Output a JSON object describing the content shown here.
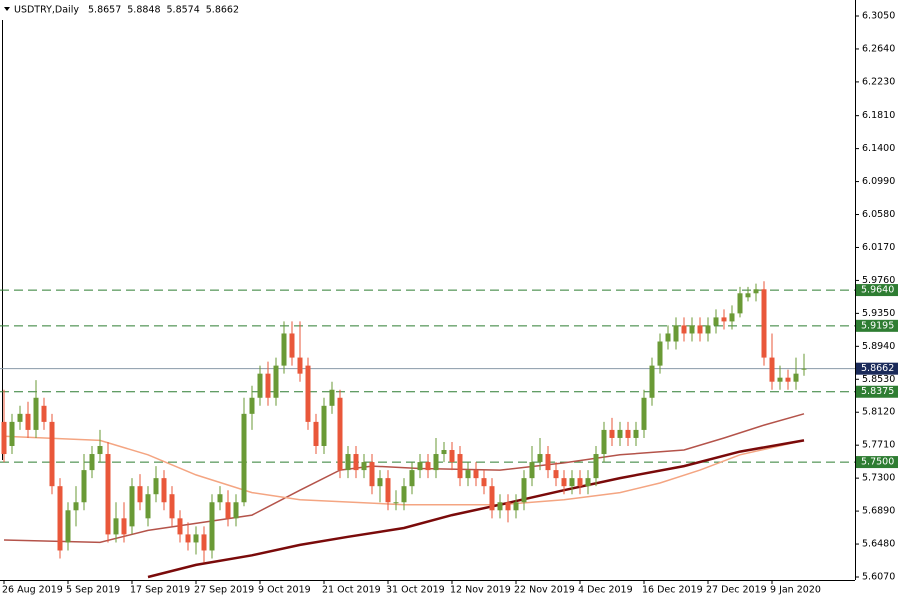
{
  "chart_data": {
    "type": "candlestick",
    "symbol": "USDTRY,Daily",
    "header_values": [
      "5.8657",
      "5.8848",
      "5.8574",
      "5.8662"
    ],
    "ylim": [
      5.607,
      6.305
    ],
    "yticks": [
      {
        "value": 6.305,
        "label": "6.3050"
      },
      {
        "value": 6.264,
        "label": "6.2640"
      },
      {
        "value": 6.223,
        "label": "6.2230"
      },
      {
        "value": 6.181,
        "label": "6.1810"
      },
      {
        "value": 6.14,
        "label": "6.1400"
      },
      {
        "value": 6.099,
        "label": "6.0990"
      },
      {
        "value": 6.058,
        "label": "6.0580"
      },
      {
        "value": 6.017,
        "label": "6.0170"
      },
      {
        "value": 5.976,
        "label": "5.9760"
      },
      {
        "value": 5.935,
        "label": "5.9350"
      },
      {
        "value": 5.894,
        "label": "5.8940"
      },
      {
        "value": 5.853,
        "label": "5.8530"
      },
      {
        "value": 5.812,
        "label": "5.8120"
      },
      {
        "value": 5.771,
        "label": "5.7710"
      },
      {
        "value": 5.73,
        "label": "5.7300"
      },
      {
        "value": 5.689,
        "label": "5.6890"
      },
      {
        "value": 5.648,
        "label": "5.6480"
      },
      {
        "value": 5.607,
        "label": "5.6070"
      }
    ],
    "xlim": [
      0,
      100
    ],
    "xticks": [
      {
        "value": 0,
        "label": "26 Aug 2019"
      },
      {
        "value": 8,
        "label": "5 Sep 2019"
      },
      {
        "value": 16,
        "label": "17 Sep 2019"
      },
      {
        "value": 24,
        "label": "27 Sep 2019"
      },
      {
        "value": 32,
        "label": "9 Oct 2019"
      },
      {
        "value": 40,
        "label": "21 Oct 2019"
      },
      {
        "value": 48,
        "label": "31 Oct 2019"
      },
      {
        "value": 56,
        "label": "12 Nov 2019"
      },
      {
        "value": 64,
        "label": "22 Nov 2019"
      },
      {
        "value": 72,
        "label": "4 Dec 2019"
      },
      {
        "value": 80,
        "label": "16 Dec 2019"
      },
      {
        "value": 88,
        "label": "27 Dec 2019"
      },
      {
        "value": 96,
        "label": "9 Jan 2020"
      }
    ],
    "up_color": "#6a9a36",
    "down_color": "#e9573a",
    "candles": [
      [
        5.8,
        5.84,
        5.75,
        5.76
      ],
      [
        5.77,
        5.81,
        5.76,
        5.8
      ],
      [
        5.8,
        5.82,
        5.79,
        5.81
      ],
      [
        5.81,
        5.825,
        5.78,
        5.79
      ],
      [
        5.79,
        5.852,
        5.78,
        5.83
      ],
      [
        5.82,
        5.83,
        5.79,
        5.8
      ],
      [
        5.8,
        5.81,
        5.71,
        5.72
      ],
      [
        5.72,
        5.73,
        5.63,
        5.64
      ],
      [
        5.65,
        5.7,
        5.64,
        5.69
      ],
      [
        5.69,
        5.72,
        5.67,
        5.7
      ],
      [
        5.7,
        5.76,
        5.69,
        5.74
      ],
      [
        5.74,
        5.77,
        5.73,
        5.76
      ],
      [
        5.76,
        5.79,
        5.75,
        5.77
      ],
      [
        5.76,
        5.775,
        5.65,
        5.66
      ],
      [
        5.66,
        5.7,
        5.65,
        5.68
      ],
      [
        5.68,
        5.7,
        5.65,
        5.66
      ],
      [
        5.67,
        5.73,
        5.66,
        5.72
      ],
      [
        5.72,
        5.735,
        5.69,
        5.7
      ],
      [
        5.68,
        5.72,
        5.67,
        5.71
      ],
      [
        5.71,
        5.745,
        5.7,
        5.73
      ],
      [
        5.73,
        5.74,
        5.69,
        5.7
      ],
      [
        5.71,
        5.72,
        5.67,
        5.68
      ],
      [
        5.68,
        5.69,
        5.65,
        5.66
      ],
      [
        5.66,
        5.675,
        5.64,
        5.65
      ],
      [
        5.65,
        5.67,
        5.635,
        5.66
      ],
      [
        5.66,
        5.67,
        5.625,
        5.64
      ],
      [
        5.64,
        5.71,
        5.63,
        5.7
      ],
      [
        5.7,
        5.72,
        5.69,
        5.71
      ],
      [
        5.7,
        5.715,
        5.67,
        5.68
      ],
      [
        5.68,
        5.71,
        5.67,
        5.7
      ],
      [
        5.7,
        5.83,
        5.695,
        5.81
      ],
      [
        5.81,
        5.845,
        5.79,
        5.83
      ],
      [
        5.83,
        5.87,
        5.82,
        5.86
      ],
      [
        5.86,
        5.875,
        5.82,
        5.83
      ],
      [
        5.83,
        5.88,
        5.82,
        5.87
      ],
      [
        5.87,
        5.925,
        5.86,
        5.91
      ],
      [
        5.91,
        5.925,
        5.87,
        5.88
      ],
      [
        5.88,
        5.925,
        5.85,
        5.86
      ],
      [
        5.87,
        5.88,
        5.79,
        5.8
      ],
      [
        5.8,
        5.81,
        5.76,
        5.77
      ],
      [
        5.77,
        5.83,
        5.76,
        5.82
      ],
      [
        5.82,
        5.85,
        5.81,
        5.84
      ],
      [
        5.83,
        5.84,
        5.73,
        5.74
      ],
      [
        5.74,
        5.77,
        5.73,
        5.76
      ],
      [
        5.76,
        5.77,
        5.73,
        5.74
      ],
      [
        5.74,
        5.76,
        5.73,
        5.75
      ],
      [
        5.75,
        5.76,
        5.71,
        5.72
      ],
      [
        5.72,
        5.74,
        5.7,
        5.73
      ],
      [
        5.73,
        5.74,
        5.69,
        5.7
      ],
      [
        5.7,
        5.715,
        5.69,
        5.7
      ],
      [
        5.7,
        5.73,
        5.69,
        5.72
      ],
      [
        5.72,
        5.75,
        5.71,
        5.74
      ],
      [
        5.74,
        5.76,
        5.73,
        5.75
      ],
      [
        5.75,
        5.76,
        5.73,
        5.74
      ],
      [
        5.74,
        5.78,
        5.73,
        5.76
      ],
      [
        5.76,
        5.775,
        5.75,
        5.765
      ],
      [
        5.765,
        5.775,
        5.74,
        5.75
      ],
      [
        5.76,
        5.77,
        5.72,
        5.73
      ],
      [
        5.73,
        5.75,
        5.72,
        5.74
      ],
      [
        5.74,
        5.75,
        5.72,
        5.73
      ],
      [
        5.73,
        5.74,
        5.71,
        5.72
      ],
      [
        5.72,
        5.73,
        5.68,
        5.69
      ],
      [
        5.69,
        5.71,
        5.68,
        5.7
      ],
      [
        5.7,
        5.71,
        5.675,
        5.69
      ],
      [
        5.69,
        5.71,
        5.68,
        5.7
      ],
      [
        5.7,
        5.74,
        5.69,
        5.73
      ],
      [
        5.73,
        5.77,
        5.72,
        5.75
      ],
      [
        5.75,
        5.78,
        5.74,
        5.76
      ],
      [
        5.76,
        5.77,
        5.73,
        5.74
      ],
      [
        5.74,
        5.75,
        5.72,
        5.73
      ],
      [
        5.73,
        5.74,
        5.71,
        5.72
      ],
      [
        5.72,
        5.74,
        5.71,
        5.73
      ],
      [
        5.73,
        5.74,
        5.71,
        5.72
      ],
      [
        5.72,
        5.74,
        5.71,
        5.73
      ],
      [
        5.73,
        5.77,
        5.72,
        5.76
      ],
      [
        5.76,
        5.8,
        5.75,
        5.79
      ],
      [
        5.79,
        5.805,
        5.77,
        5.78
      ],
      [
        5.78,
        5.8,
        5.77,
        5.79
      ],
      [
        5.79,
        5.8,
        5.77,
        5.78
      ],
      [
        5.78,
        5.8,
        5.77,
        5.79
      ],
      [
        5.79,
        5.84,
        5.78,
        5.83
      ],
      [
        5.83,
        5.88,
        5.82,
        5.87
      ],
      [
        5.87,
        5.91,
        5.86,
        5.9
      ],
      [
        5.9,
        5.92,
        5.89,
        5.91
      ],
      [
        5.9,
        5.93,
        5.89,
        5.92
      ],
      [
        5.92,
        5.93,
        5.9,
        5.91
      ],
      [
        5.91,
        5.93,
        5.9,
        5.92
      ],
      [
        5.92,
        5.93,
        5.9,
        5.91
      ],
      [
        5.91,
        5.93,
        5.9,
        5.92
      ],
      [
        5.92,
        5.94,
        5.91,
        5.93
      ],
      [
        5.93,
        5.94,
        5.915,
        5.925
      ],
      [
        5.925,
        5.945,
        5.915,
        5.935
      ],
      [
        5.935,
        5.968,
        5.93,
        5.96
      ],
      [
        5.955,
        5.968,
        5.95,
        5.96
      ],
      [
        5.96,
        5.972,
        5.95,
        5.965
      ],
      [
        5.965,
        5.975,
        5.87,
        5.88
      ],
      [
        5.88,
        5.91,
        5.84,
        5.85
      ],
      [
        5.85,
        5.87,
        5.84,
        5.855
      ],
      [
        5.855,
        5.865,
        5.84,
        5.85
      ],
      [
        5.85,
        5.88,
        5.84,
        5.86
      ],
      [
        5.8657,
        5.8848,
        5.8574,
        5.8662
      ]
    ],
    "lines": [
      {
        "color": "#b4534a",
        "width": 1.5,
        "x": [
          0,
          12,
          18,
          31,
          37,
          42,
          46,
          52,
          62,
          70,
          77,
          85,
          90,
          95,
          100
        ],
        "values": [
          5.653,
          5.65,
          5.665,
          5.684,
          5.715,
          5.74,
          5.745,
          5.742,
          5.74,
          5.749,
          5.759,
          5.765,
          5.78,
          5.796,
          5.81
        ]
      },
      {
        "color": "#f4a582",
        "width": 1.5,
        "x": [
          0,
          12,
          18,
          24,
          31,
          37,
          50,
          62,
          70,
          77,
          82,
          87,
          92,
          100
        ],
        "values": [
          5.782,
          5.777,
          5.759,
          5.734,
          5.712,
          5.703,
          5.697,
          5.697,
          5.703,
          5.712,
          5.724,
          5.74,
          5.759,
          5.777
        ]
      },
      {
        "color": "#7a0a0a",
        "width": 2.5,
        "x": [
          18,
          24,
          31,
          37,
          43,
          50,
          56,
          62,
          70,
          77,
          85,
          92,
          100
        ],
        "values": [
          5.607,
          5.622,
          5.634,
          5.647,
          5.657,
          5.668,
          5.684,
          5.697,
          5.715,
          5.73,
          5.745,
          5.763,
          5.777
        ]
      }
    ],
    "levels": [
      {
        "value": 5.964,
        "label": "5.9640"
      },
      {
        "value": 5.9195,
        "label": "5.9195"
      },
      {
        "value": 5.8375,
        "label": "5.8375"
      },
      {
        "value": 5.75,
        "label": "5.7500"
      }
    ],
    "level_color": "#2e7d32",
    "current": {
      "value": 5.8662,
      "label": "5.8662"
    },
    "current_color": "#1a2a5a"
  }
}
